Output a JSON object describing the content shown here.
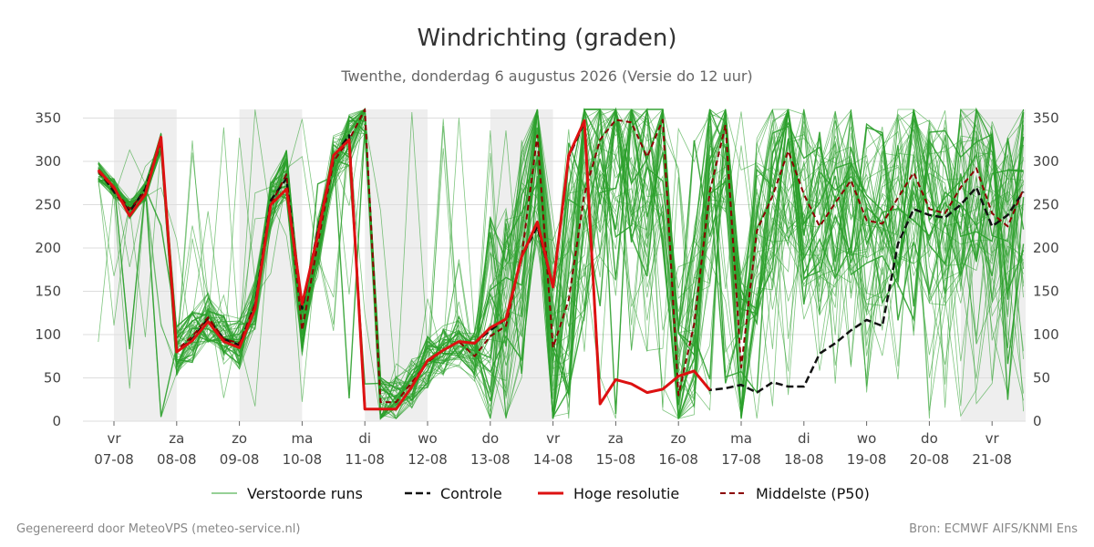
{
  "chart_data": {
    "type": "line",
    "title": "Windrichting (graden)",
    "subtitle": "Twenthe, donderdag  6 augustus 2026 (Versie do 12 uur)",
    "ylim": [
      0,
      360
    ],
    "yticks": [
      0,
      50,
      100,
      150,
      200,
      250,
      300,
      350
    ],
    "day_ticks": [
      {
        "day": "vr",
        "date": "07-08"
      },
      {
        "day": "za",
        "date": "08-08"
      },
      {
        "day": "zo",
        "date": "09-08"
      },
      {
        "day": "ma",
        "date": "10-08"
      },
      {
        "day": "di",
        "date": "11-08"
      },
      {
        "day": "wo",
        "date": "12-08"
      },
      {
        "day": "do",
        "date": "13-08"
      },
      {
        "day": "vr",
        "date": "14-08"
      },
      {
        "day": "za",
        "date": "15-08"
      },
      {
        "day": "zo",
        "date": "16-08"
      },
      {
        "day": "ma",
        "date": "17-08"
      },
      {
        "day": "di",
        "date": "18-08"
      },
      {
        "day": "wo",
        "date": "19-08"
      },
      {
        "day": "do",
        "date": "20-08"
      },
      {
        "day": "vr",
        "date": "21-08"
      }
    ],
    "weekend_shading": [
      "za",
      "ma",
      "wo",
      "vr"
    ],
    "grid": true,
    "legend_position": "bottom",
    "colors": {
      "perturbed": "#2ca02c",
      "control": "#111111",
      "highres": "#dd1111",
      "median": "#8b0000",
      "shade": "#eeeeee",
      "grid": "#dddddd"
    },
    "series": [
      {
        "name": "Hoge resolutie",
        "x": [
          -0.25,
          0,
          0.25,
          0.5,
          0.75,
          1,
          1.25,
          1.5,
          1.75,
          2,
          2.25,
          2.5,
          2.75,
          3,
          3.25,
          3.5,
          3.75,
          4,
          4.25,
          4.5,
          4.75,
          5,
          5.25,
          5.5,
          5.75,
          6,
          6.25,
          6.5,
          6.75,
          7,
          7.25,
          7.5,
          7.75,
          8,
          8.25,
          8.5,
          8.75,
          9,
          9.25,
          9.5
        ],
        "values": [
          290,
          270,
          237,
          262,
          328,
          80,
          93,
          115,
          92,
          85,
          130,
          250,
          268,
          135,
          215,
          307,
          325,
          14,
          14,
          14,
          40,
          70,
          82,
          92,
          90,
          108,
          118,
          190,
          230,
          155,
          307,
          347,
          20,
          48,
          43,
          33,
          37,
          52,
          58,
          36
        ]
      },
      {
        "name": "Controle",
        "x": [
          -0.25,
          0,
          0.25,
          0.5,
          0.75,
          1,
          1.25,
          1.5,
          1.75,
          2,
          2.25,
          2.5,
          2.75,
          3,
          3.25,
          3.5,
          3.75,
          4,
          4.25,
          4.5,
          4.75,
          5,
          5.25,
          5.5,
          5.75,
          6,
          6.25,
          6.5,
          6.75,
          7,
          7.25,
          7.5,
          7.75,
          8,
          8.25,
          8.5,
          8.75,
          9,
          9.25,
          9.5,
          9.75,
          10,
          10.25,
          10.5,
          10.75,
          11,
          11.25,
          11.5,
          11.75,
          12,
          12.25,
          12.5,
          12.75,
          13,
          13.25,
          13.5,
          13.75,
          14,
          14.25,
          14.5
        ],
        "values": [
          290,
          265,
          242,
          268,
          325,
          80,
          95,
          118,
          95,
          88,
          135,
          255,
          280,
          130,
          220,
          305,
          330,
          14,
          14,
          14,
          40,
          70,
          82,
          92,
          90,
          105,
          118,
          190,
          225,
          155,
          305,
          345,
          20,
          48,
          43,
          33,
          37,
          52,
          58,
          36,
          38,
          42,
          33,
          45,
          40,
          40,
          78,
          90,
          105,
          117,
          110,
          205,
          245,
          238,
          235,
          250,
          270,
          225,
          238,
          265
        ]
      },
      {
        "name": "Middelste (P50)",
        "x": [
          -0.25,
          0,
          0.25,
          0.5,
          0.75,
          1,
          1.25,
          1.5,
          1.75,
          2,
          2.25,
          2.5,
          2.75,
          3,
          3.25,
          3.5,
          3.75,
          4,
          4.25,
          4.5,
          4.75,
          5,
          5.25,
          5.5,
          5.75,
          6,
          6.25,
          6.5,
          6.75,
          7,
          7.25,
          7.5,
          7.75,
          8,
          8.25,
          8.5,
          8.75,
          9,
          9.25,
          9.5,
          9.75,
          10,
          10.25,
          10.5,
          10.75,
          11,
          11.25,
          11.5,
          11.75,
          12,
          12.25,
          12.5,
          12.75,
          13,
          13.25,
          13.5,
          13.75,
          14,
          14.25,
          14.5
        ],
        "values": [
          288,
          268,
          245,
          265,
          322,
          82,
          98,
          120,
          95,
          90,
          135,
          250,
          285,
          105,
          205,
          300,
          325,
          360,
          22,
          22,
          45,
          68,
          82,
          92,
          75,
          98,
          110,
          190,
          330,
          85,
          140,
          262,
          325,
          348,
          345,
          305,
          348,
          30,
          112,
          265,
          342,
          62,
          220,
          260,
          312,
          262,
          225,
          252,
          278,
          232,
          228,
          258,
          287,
          245,
          240,
          270,
          292,
          240,
          225,
          268
        ]
      }
    ],
    "legend": [
      {
        "key": "perturbed",
        "label": "Verstoorde runs"
      },
      {
        "key": "control",
        "label": "Controle"
      },
      {
        "key": "highres",
        "label": "Hoge resolutie"
      },
      {
        "key": "median",
        "label": "Middelste (P50)"
      }
    ],
    "footer_left": "Gegenereerd door MeteoVPS (meteo-service.nl)",
    "footer_right": "Bron: ECMWF AIFS/KNMI Ens"
  }
}
